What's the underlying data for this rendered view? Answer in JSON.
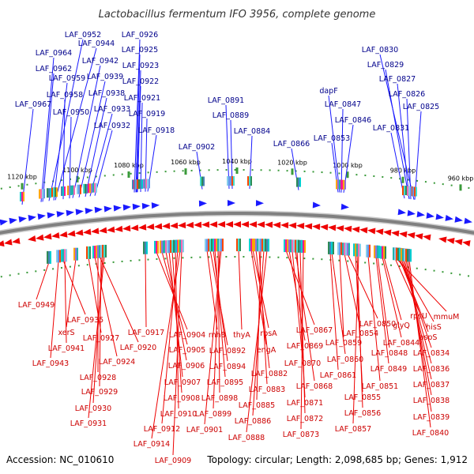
{
  "title": "Lactobacillus fermentum IFO 3956, complete genome",
  "footer": {
    "accession": "Accession: NC_010610",
    "summary": "Topology: circular; Length: 2,098,685 bp; Genes: 1,912"
  },
  "colors": {
    "forward": "#1a1aff",
    "reverse": "#ee0000",
    "forward_label": "#00008b",
    "reverse_label": "#cc0000",
    "backbone": "#808080",
    "tick": "#3a9a3a"
  },
  "kbp_ticks": [
    "960 kbp",
    "980 kbp",
    "1000 kbp",
    "1020 kbp",
    "1040 kbp",
    "1060 kbp",
    "1080 kbp",
    "1100 kbp",
    "1120 kbp"
  ],
  "forward_genes": [
    "LAF_0952",
    "LAF_0926",
    "LAF_0944",
    "LAF_0925",
    "LAF_0964",
    "LAF_0942",
    "LAF_0923",
    "LAF_0962",
    "LAF_0939",
    "LAF_0922",
    "LAF_0959",
    "LAF_0938",
    "LAF_0921",
    "LAF_0958",
    "LAF_0967",
    "LAF_0933",
    "LAF_0950",
    "LAF_0919",
    "LAF_0932",
    "LAF_0918",
    "LAF_0891",
    "LAF_0889",
    "LAF_0884",
    "LAF_0902",
    "LAF_0866",
    "dapF",
    "LAF_0847",
    "LAF_0846",
    "LAF_0853",
    "LAF_0830",
    "LAF_0829",
    "LAF_0827",
    "LAF_0826",
    "LAF_0825",
    "LAF_0831"
  ],
  "reverse_genes": [
    "LAF_0949",
    "LAF_0935",
    "xerS",
    "LAF_0941",
    "LAF_0943",
    "LAF_0927",
    "LAF_0920",
    "LAF_0924",
    "LAF_0928",
    "LAF_0929",
    "LAF_0930",
    "LAF_0931",
    "LAF_0917",
    "LAF_0904",
    "LAF_0905",
    "LAF_0906",
    "LAF_0907",
    "LAF_0908",
    "LAF_0910",
    "LAF_0912",
    "LAF_0914",
    "LAF_0909",
    "rnhB",
    "LAF_0892",
    "LAF_0894",
    "LAF_0895",
    "LAF_0898",
    "LAF_0899",
    "LAF_0901",
    "thyA",
    "rpsA",
    "engA",
    "LAF_0882",
    "LAF_0883",
    "LAF_0885",
    "LAF_0886",
    "LAF_0888",
    "LAF_0867",
    "LAF_0869",
    "LAF_0870",
    "LAF_0868",
    "LAF_0871",
    "LAF_0872",
    "LAF_0873",
    "LAF_0850",
    "LAF_0854",
    "LAF_0859",
    "LAF_0860",
    "LAF_0861",
    "LAF_0855",
    "LAF_0856",
    "LAF_0857",
    "LAF_0851",
    "glyQ",
    "LAF_0848",
    "LAF_0844",
    "LAF_0849",
    "rpsU",
    "mmuM",
    "hisS",
    "aspS",
    "LAF_0834",
    "LAF_0836",
    "LAF_0837",
    "LAF_0838",
    "LAF_0839",
    "LAF_0840"
  ]
}
